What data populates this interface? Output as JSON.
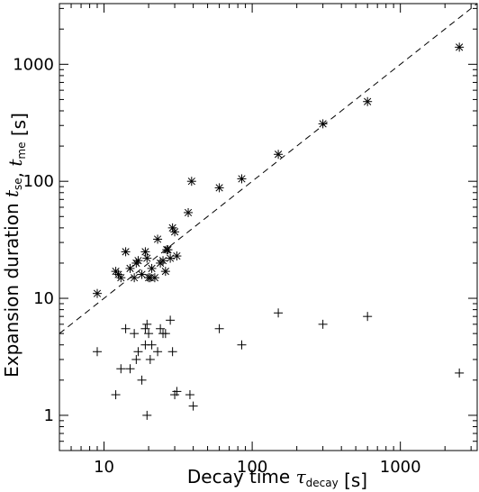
{
  "chart_data": {
    "type": "scatter",
    "x_scale": "log",
    "y_scale": "log",
    "xlim": [
      5,
      3300
    ],
    "ylim": [
      0.5,
      3300
    ],
    "x_ticks": [
      {
        "value": 10,
        "label": "10"
      },
      {
        "value": 100,
        "label": "100"
      },
      {
        "value": 1000,
        "label": "1000"
      }
    ],
    "y_ticks": [
      {
        "value": 1,
        "label": "1"
      },
      {
        "value": 10,
        "label": "10"
      },
      {
        "value": 100,
        "label": "100"
      },
      {
        "value": 1000,
        "label": "1000"
      }
    ],
    "xlabel_parts": [
      {
        "text": "Decay time ",
        "style": "normal"
      },
      {
        "text": "τ",
        "style": "italic"
      },
      {
        "text": "decay",
        "style": "sub"
      },
      {
        "text": " [s]",
        "style": "normal"
      }
    ],
    "ylabel_parts": [
      {
        "text": "Expansion duration ",
        "style": "normal"
      },
      {
        "text": "t",
        "style": "italic"
      },
      {
        "text": "se",
        "style": "sub"
      },
      {
        "text": ", ",
        "style": "normal"
      },
      {
        "text": "t",
        "style": "italic"
      },
      {
        "text": "me",
        "style": "sub"
      },
      {
        "text": " [s]",
        "style": "normal"
      }
    ],
    "grid": false,
    "reference_line": {
      "style": "dashed",
      "relation": "y = x"
    },
    "series": [
      {
        "marker": "asterisk",
        "points": [
          [
            9,
            11
          ],
          [
            12,
            17
          ],
          [
            12.5,
            16
          ],
          [
            13,
            15
          ],
          [
            14,
            25
          ],
          [
            15,
            18
          ],
          [
            16,
            15
          ],
          [
            16.5,
            20
          ],
          [
            17,
            21
          ],
          [
            18,
            16
          ],
          [
            19,
            25
          ],
          [
            19.5,
            22
          ],
          [
            20,
            15
          ],
          [
            20.5,
            15
          ],
          [
            21,
            18
          ],
          [
            22,
            15
          ],
          [
            23,
            32
          ],
          [
            24,
            20
          ],
          [
            25,
            21
          ],
          [
            26,
            17
          ],
          [
            26.5,
            26
          ],
          [
            27,
            26
          ],
          [
            28,
            22
          ],
          [
            29,
            40
          ],
          [
            30,
            37
          ],
          [
            31,
            23
          ],
          [
            37,
            54
          ],
          [
            39,
            100
          ],
          [
            60,
            88
          ],
          [
            85,
            105
          ],
          [
            150,
            170
          ],
          [
            300,
            310
          ],
          [
            600,
            480
          ],
          [
            2500,
            1400
          ]
        ]
      },
      {
        "marker": "plus",
        "points": [
          [
            9,
            3.5
          ],
          [
            12,
            1.5
          ],
          [
            13,
            2.5
          ],
          [
            14,
            5.5
          ],
          [
            15,
            2.5
          ],
          [
            16,
            5
          ],
          [
            16.5,
            3
          ],
          [
            17,
            3.5
          ],
          [
            18,
            2
          ],
          [
            19,
            5.5
          ],
          [
            19,
            4
          ],
          [
            19.5,
            6
          ],
          [
            20,
            5
          ],
          [
            19.5,
            1
          ],
          [
            20.5,
            3
          ],
          [
            21,
            4
          ],
          [
            23,
            3.5
          ],
          [
            24,
            5.5
          ],
          [
            25,
            5
          ],
          [
            26,
            5
          ],
          [
            28,
            6.5
          ],
          [
            29,
            3.5
          ],
          [
            30,
            1.5
          ],
          [
            31,
            1.6
          ],
          [
            38,
            1.5
          ],
          [
            40,
            1.2
          ],
          [
            60,
            5.5
          ],
          [
            85,
            4
          ],
          [
            150,
            7.5
          ],
          [
            300,
            6
          ],
          [
            600,
            7
          ],
          [
            2500,
            2.3
          ]
        ]
      }
    ]
  }
}
